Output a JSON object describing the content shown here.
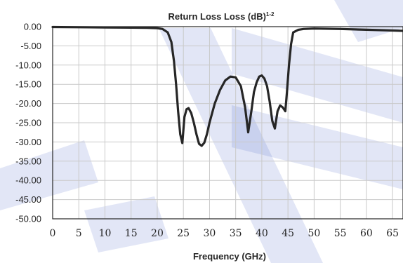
{
  "chart_data": {
    "type": "line",
    "title": "Return Loss Loss (dB)",
    "title_superscript": "1-2",
    "xlabel": "Frequency (GHz)",
    "ylabel": "",
    "xlim": [
      0,
      67
    ],
    "ylim": [
      -50,
      0
    ],
    "x_ticks": [
      "0",
      "5",
      "10",
      "15",
      "20",
      "25",
      "30",
      "35",
      "40",
      "45",
      "50",
      "55",
      "60",
      "65"
    ],
    "y_ticks": [
      "0.00",
      "-5.00",
      "-10.00",
      "-15.00",
      "-20.00",
      "-25.00",
      "-30.00",
      "-35.00",
      "-40.00",
      "-45.00",
      "-50.00"
    ],
    "grid": true,
    "legend": "none",
    "series": [
      {
        "color": "#262626",
        "x": [
          0,
          5,
          10,
          15,
          18,
          20,
          21,
          22,
          22.7,
          23.2,
          23.6,
          24.0,
          24.4,
          24.8,
          25.2,
          25.6,
          26.0,
          26.5,
          27.0,
          27.5,
          28.0,
          28.5,
          29.0,
          29.5,
          30.0,
          31.0,
          32.0,
          33.0,
          34.0,
          35.0,
          36.0,
          36.8,
          37.4,
          38.0,
          38.5,
          39.0,
          39.5,
          40.0,
          40.5,
          41.0,
          41.5,
          42.0,
          42.5,
          43.0,
          43.5,
          44.0,
          44.5,
          44.8,
          45.2,
          45.6,
          46.0,
          47.0,
          48.0,
          50.0,
          55.0,
          60.0,
          65.0,
          67.0
        ],
        "y": [
          -0.1,
          -0.15,
          -0.2,
          -0.25,
          -0.3,
          -0.4,
          -0.6,
          -1.5,
          -4,
          -9,
          -15,
          -22,
          -28,
          -30.3,
          -23.5,
          -21.5,
          -21.2,
          -22.5,
          -25,
          -28,
          -30.5,
          -31,
          -30.2,
          -28,
          -25,
          -20,
          -16.5,
          -14,
          -13,
          -13.2,
          -15.5,
          -21,
          -27.5,
          -22,
          -17,
          -14.5,
          -13,
          -12.7,
          -13.5,
          -15.5,
          -19.5,
          -24.5,
          -26.5,
          -22,
          -20.5,
          -21,
          -22,
          -17,
          -10,
          -4.5,
          -1.5,
          -0.8,
          -0.6,
          -0.5,
          -0.6,
          -0.8,
          -1.0,
          -1.1
        ]
      }
    ]
  },
  "watermark_color": "#4a63c8"
}
